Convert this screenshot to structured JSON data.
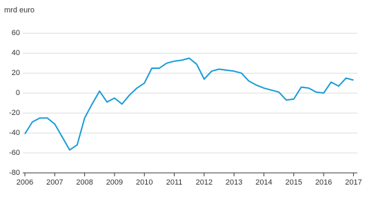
{
  "chart_data": {
    "type": "line",
    "y_unit_label": "mrd euro",
    "x": [
      2006,
      2006.25,
      2006.5,
      2006.75,
      2007,
      2007.25,
      2007.5,
      2007.75,
      2008,
      2008.25,
      2008.5,
      2008.75,
      2009,
      2009.25,
      2009.5,
      2009.75,
      2010,
      2010.25,
      2010.5,
      2010.75,
      2011,
      2011.25,
      2011.5,
      2011.75,
      2012,
      2012.25,
      2012.5,
      2012.75,
      2013,
      2013.25,
      2013.5,
      2013.75,
      2014,
      2014.25,
      2014.5,
      2014.75,
      2015,
      2015.25,
      2015.5,
      2015.75,
      2016,
      2016.25,
      2016.5,
      2016.75,
      2017
    ],
    "series": [
      {
        "color": "#1a9bd7",
        "values": [
          -41,
          -29,
          -25,
          -25,
          -31,
          -44,
          -57,
          -52,
          -25,
          -11,
          2,
          -9,
          -5,
          -11,
          -2,
          5,
          10,
          25,
          25,
          30,
          32,
          33,
          35,
          29,
          14,
          22,
          24,
          23,
          22,
          20,
          12,
          8,
          5,
          3,
          1,
          -7,
          -6,
          6,
          5,
          1,
          0,
          11,
          7,
          15,
          13
        ]
      }
    ],
    "xlim": [
      2005.93,
      2017.13
    ],
    "xticks": [
      2006,
      2007,
      2008,
      2009,
      2010,
      2011,
      2012,
      2013,
      2014,
      2015,
      2016,
      2017
    ],
    "ylim": [
      -80,
      74
    ],
    "yticks": [
      -80,
      -60,
      -40,
      -20,
      0,
      20,
      40,
      60
    ],
    "grid": true
  }
}
